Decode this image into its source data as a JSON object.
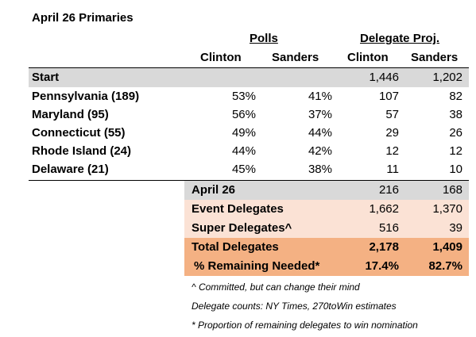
{
  "title": "April 26 Primaries",
  "groups": {
    "polls": "Polls",
    "delegates": "Delegate Proj."
  },
  "columns": {
    "clinton": "Clinton",
    "sanders": "Sanders"
  },
  "start": {
    "label": "Start",
    "clinton_del": "1,446",
    "sanders_del": "1,202"
  },
  "states": [
    {
      "name": "Pennsylvania (189)",
      "clinton_poll": "53%",
      "sanders_poll": "41%",
      "clinton_del": "107",
      "sanders_del": "82"
    },
    {
      "name": "Maryland (95)",
      "clinton_poll": "56%",
      "sanders_poll": "37%",
      "clinton_del": "57",
      "sanders_del": "38"
    },
    {
      "name": "Connecticut (55)",
      "clinton_poll": "49%",
      "sanders_poll": "44%",
      "clinton_del": "29",
      "sanders_del": "26"
    },
    {
      "name": "Rhode Island (24)",
      "clinton_poll": "44%",
      "sanders_poll": "42%",
      "clinton_del": "12",
      "sanders_del": "12"
    },
    {
      "name": "Delaware (21)",
      "clinton_poll": "45%",
      "sanders_poll": "38%",
      "clinton_del": "11",
      "sanders_del": "10"
    }
  ],
  "summary": [
    {
      "label": "April 26",
      "clinton": "216",
      "sanders": "168",
      "color": "#d9d9d9"
    },
    {
      "label": "Event Delegates",
      "clinton": "1,662",
      "sanders": "1,370",
      "color": "#fbe2d5"
    },
    {
      "label": "Super Delegates^",
      "clinton": "516",
      "sanders": "39",
      "color": "#fbe2d5"
    },
    {
      "label": "Total Delegates",
      "clinton": "2,178",
      "sanders": "1,409",
      "color": "#f4b183"
    },
    {
      "label": "% Remaining Needed*",
      "clinton": "17.4%",
      "sanders": "82.7%",
      "color": "#f4b183"
    }
  ],
  "notes": [
    "^ Committed, but can change their mind",
    "Delegate counts: NY Times, 270toWin estimates",
    "* Proportion of remaining delegates to win nomination"
  ]
}
